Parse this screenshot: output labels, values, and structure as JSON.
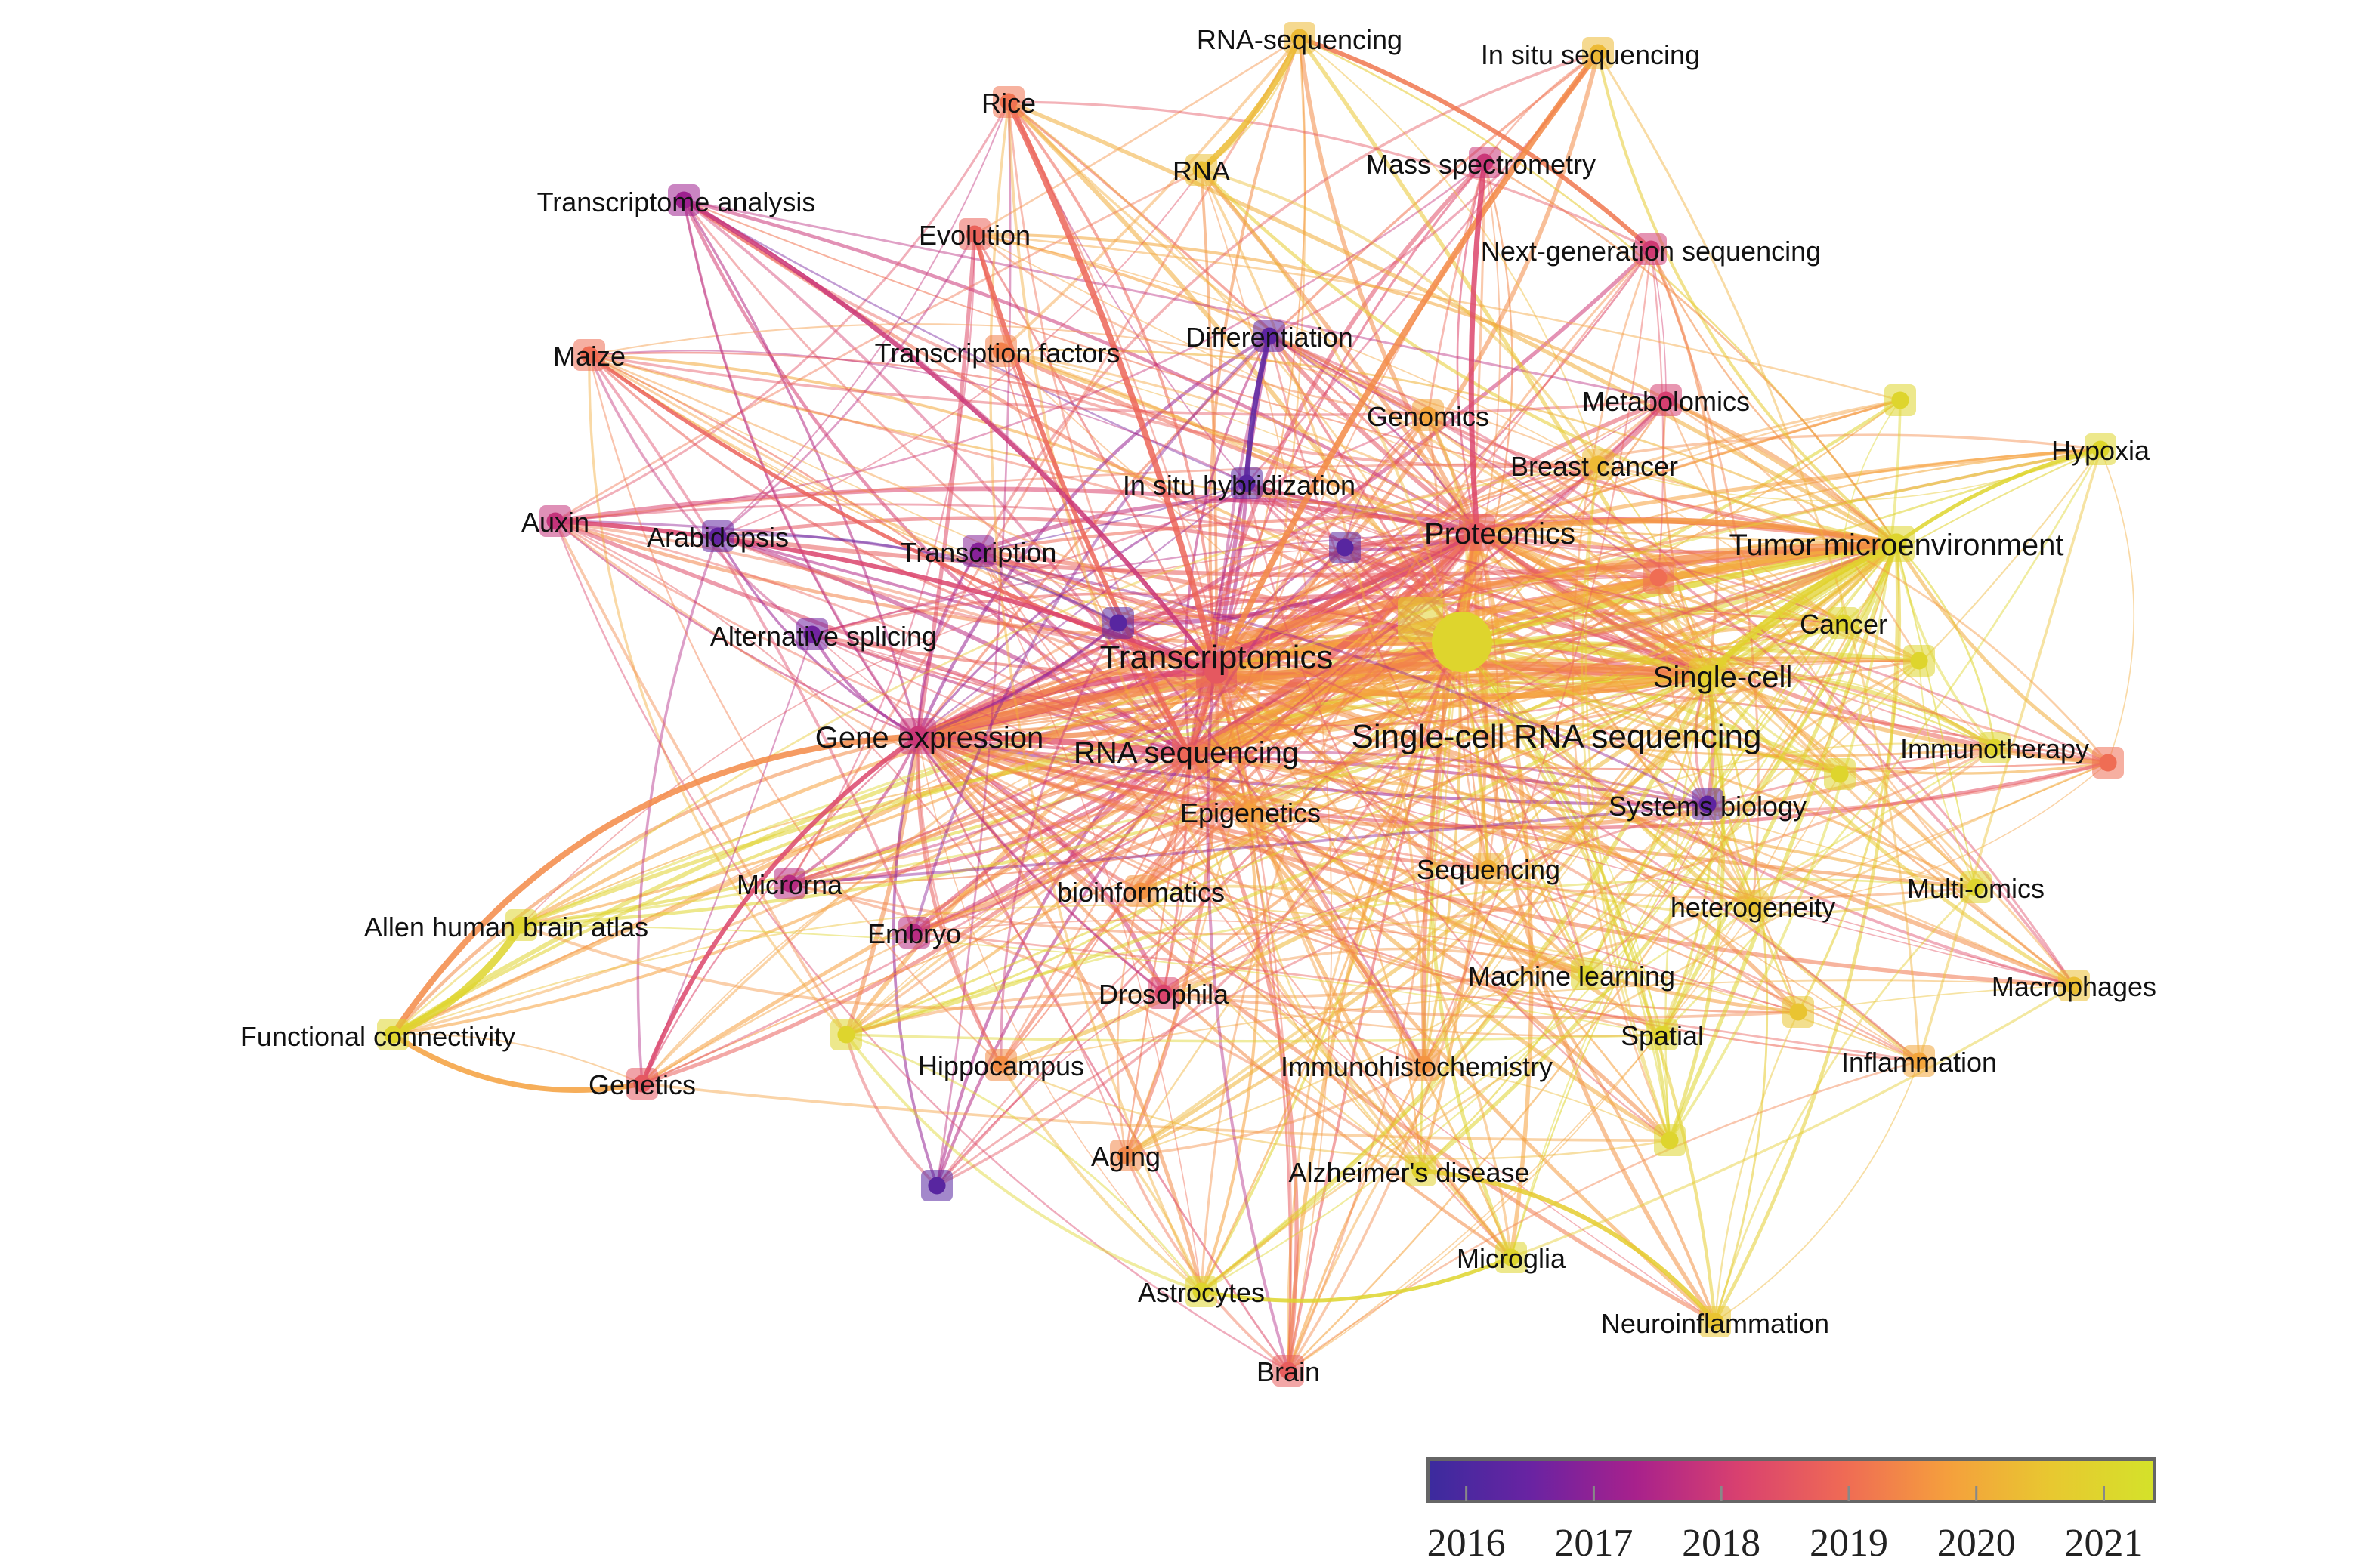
{
  "legend": {
    "ticks": [
      "2016",
      "2017",
      "2018",
      "2019",
      "2020",
      "2021"
    ],
    "gradient": [
      "#3b2b9e",
      "#6a23a2",
      "#a8218c",
      "#d9416f",
      "#ef6a55",
      "#f59f3d",
      "#e8c830",
      "#d4e22a"
    ]
  },
  "nodes": [
    {
      "id": "transcriptomics",
      "label": "Transcriptomics",
      "year": 2018.6,
      "size": 3
    },
    {
      "id": "single-cell-rna-seq",
      "label": "Single-cell RNA sequencing",
      "year": 2020.9,
      "size": 3
    },
    {
      "id": "rna-sequencing",
      "label": "RNA sequencing",
      "year": 2018.9,
      "size": 2
    },
    {
      "id": "gene-expression",
      "label": "Gene expression",
      "year": 2017.9,
      "size": 2
    },
    {
      "id": "single-cell",
      "label": "Single-cell",
      "year": 2020.8,
      "size": 2
    },
    {
      "id": "tumor-microenvironment",
      "label": "Tumor microenvironment",
      "year": 2021.0,
      "size": 2
    },
    {
      "id": "proteomics",
      "label": "Proteomics",
      "year": 2018.6,
      "size": 2
    },
    {
      "id": "rna-sequencing-top",
      "label": "RNA-sequencing",
      "year": 2020.3,
      "size": 1
    },
    {
      "id": "in-situ-sequencing",
      "label": "In situ sequencing",
      "year": 2020.3,
      "size": 1
    },
    {
      "id": "rice",
      "label": "Rice",
      "year": 2019.1,
      "size": 1
    },
    {
      "id": "rna",
      "label": "RNA",
      "year": 2020.4,
      "size": 1
    },
    {
      "id": "mass-spectrometry",
      "label": "Mass spectrometry",
      "year": 2017.9,
      "size": 1
    },
    {
      "id": "transcriptome-analysis",
      "label": "Transcriptome analysis",
      "year": 2017.2,
      "size": 1
    },
    {
      "id": "evolution",
      "label": "Evolution",
      "year": 2018.8,
      "size": 1
    },
    {
      "id": "next-gen-sequencing",
      "label": "Next-generation sequencing",
      "year": 2018.0,
      "size": 1
    },
    {
      "id": "maize",
      "label": "Maize",
      "year": 2019.0,
      "size": 1
    },
    {
      "id": "transcription-factors",
      "label": "Transcription factors",
      "year": 2019.3,
      "size": 1
    },
    {
      "id": "differentiation",
      "label": "Differentiation",
      "year": 2016.3,
      "size": 1
    },
    {
      "id": "genomics",
      "label": "Genomics",
      "year": 2019.9,
      "size": 1
    },
    {
      "id": "metabolomics",
      "label": "Metabolomics",
      "year": 2018.1,
      "size": 1
    },
    {
      "id": "hypoxia",
      "label": "Hypoxia",
      "year": 2021.0,
      "size": 1
    },
    {
      "id": "breast-cancer",
      "label": "Breast cancer",
      "year": 2020.3,
      "size": 1
    },
    {
      "id": "in-situ-hybridization",
      "label": "In situ hybridization",
      "year": 2016.2,
      "size": 1
    },
    {
      "id": "auxin",
      "label": "Auxin",
      "year": 2017.8,
      "size": 1
    },
    {
      "id": "arabidopsis",
      "label": "Arabidopsis",
      "year": 2016.4,
      "size": 1
    },
    {
      "id": "transcription",
      "label": "Transcription",
      "year": 2016.9,
      "size": 1
    },
    {
      "id": "cancer",
      "label": "Cancer",
      "year": 2021.0,
      "size": 1
    },
    {
      "id": "alternative-splicing",
      "label": "Alternative splicing",
      "year": 2016.6,
      "size": 1
    },
    {
      "id": "immunotherapy",
      "label": "Immunotherapy",
      "year": 2021.0,
      "size": 1
    },
    {
      "id": "systems-biology",
      "label": "Systems biology",
      "year": 2016.3,
      "size": 1
    },
    {
      "id": "epigenetics",
      "label": "Epigenetics",
      "year": 2019.8,
      "size": 1
    },
    {
      "id": "microrna",
      "label": "Microrna",
      "year": 2017.6,
      "size": 1
    },
    {
      "id": "bioinformatics",
      "label": "bioinformatics",
      "year": 2019.6,
      "size": 1
    },
    {
      "id": "sequencing",
      "label": "Sequencing",
      "year": 2020.1,
      "size": 1
    },
    {
      "id": "heterogeneity",
      "label": "heterogeneity",
      "year": 2020.5,
      "size": 1
    },
    {
      "id": "multi-omics",
      "label": "Multi-omics",
      "year": 2021.0,
      "size": 1
    },
    {
      "id": "allen-brain-atlas",
      "label": "Allen human brain atlas",
      "year": 2021.0,
      "size": 1
    },
    {
      "id": "embryo",
      "label": "Embryo",
      "year": 2017.6,
      "size": 1
    },
    {
      "id": "machine-learning",
      "label": "Machine learning",
      "year": 2021.0,
      "size": 1
    },
    {
      "id": "macrophages",
      "label": "Macrophages",
      "year": 2020.4,
      "size": 1
    },
    {
      "id": "drosophila",
      "label": "Drosophila",
      "year": 2018.2,
      "size": 1
    },
    {
      "id": "functional-connectivity",
      "label": "Functional connectivity",
      "year": 2021.0,
      "size": 1
    },
    {
      "id": "spatial",
      "label": "Spatial",
      "year": 2021.0,
      "size": 1
    },
    {
      "id": "genetics",
      "label": "Genetics",
      "year": 2018.6,
      "size": 1
    },
    {
      "id": "hippocampus",
      "label": "Hippocampus",
      "year": 2019.5,
      "size": 1
    },
    {
      "id": "immunohistochemistry",
      "label": "Immunohistochemistry",
      "year": 2019.6,
      "size": 1
    },
    {
      "id": "inflammation",
      "label": "Inflammation",
      "year": 2019.9,
      "size": 1
    },
    {
      "id": "aging",
      "label": "Aging",
      "year": 2019.4,
      "size": 1
    },
    {
      "id": "alzheimers",
      "label": "Alzheimer's disease",
      "year": 2020.9,
      "size": 1
    },
    {
      "id": "microglia",
      "label": "Microglia",
      "year": 2021.0,
      "size": 1
    },
    {
      "id": "astrocytes",
      "label": "Astrocytes",
      "year": 2021.0,
      "size": 1
    },
    {
      "id": "neuroinflammation",
      "label": "Neuroinflammation",
      "year": 2020.5,
      "size": 1
    },
    {
      "id": "brain",
      "label": "Brain",
      "year": 2018.7,
      "size": 1
    },
    {
      "id": "unlabeled-1",
      "label": "",
      "year": 2021.0,
      "size": 1
    },
    {
      "id": "unlabeled-2",
      "label": "",
      "year": 2016.2,
      "size": 1
    },
    {
      "id": "unlabeled-3",
      "label": "",
      "year": 2016.2,
      "size": 1
    },
    {
      "id": "unlabeled-4",
      "label": "",
      "year": 2019.0,
      "size": 1
    },
    {
      "id": "unlabeled-5",
      "label": "",
      "year": 2021.0,
      "size": 1
    },
    {
      "id": "unlabeled-6",
      "label": "",
      "year": 2021.0,
      "size": 1
    },
    {
      "id": "unlabeled-7",
      "label": "",
      "year": 2021.0,
      "size": 1
    },
    {
      "id": "unlabeled-8",
      "label": "",
      "year": 2019.0,
      "size": 1
    },
    {
      "id": "unlabeled-9",
      "label": "",
      "year": 2020.5,
      "size": 1
    },
    {
      "id": "unlabeled-10",
      "label": "",
      "year": 2021.0,
      "size": 1
    },
    {
      "id": "unlabeled-11",
      "label": "",
      "year": 2021.0,
      "size": 1
    },
    {
      "id": "unlabeled-12",
      "label": "",
      "year": 2016.2,
      "size": 1
    }
  ]
}
